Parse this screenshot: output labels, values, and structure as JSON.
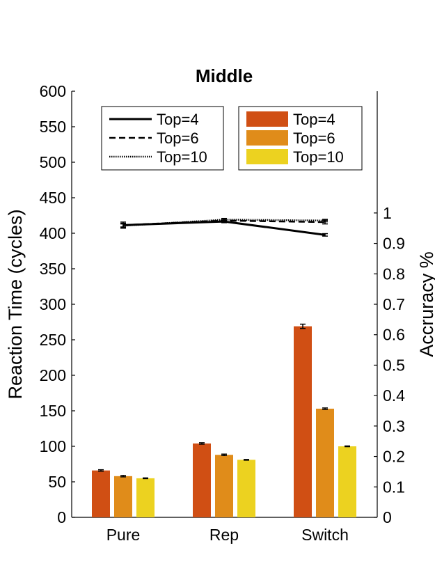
{
  "chart_data": {
    "type": "bar",
    "title": "Middle",
    "categories": [
      "Pure",
      "Rep",
      "Switch"
    ],
    "ylabel": "Reaction Time (cycles)",
    "ylim": [
      0,
      600
    ],
    "yticks": [
      "0",
      "50",
      "100",
      "150",
      "200",
      "250",
      "300",
      "350",
      "400",
      "450",
      "500",
      "550",
      "600"
    ],
    "y2label": "Accruracy %",
    "y2lim": [
      0,
      1.4
    ],
    "y2ticks": [
      "0",
      "0.1",
      "0.2",
      "0.3",
      "0.4",
      "0.5",
      "0.6",
      "0.7",
      "0.8",
      "0.9",
      "1"
    ],
    "bar_series": [
      {
        "name": "Top=4",
        "color": "#d04f14",
        "values": [
          66,
          104,
          269
        ],
        "errors": [
          1,
          1,
          3
        ]
      },
      {
        "name": "Top=6",
        "color": "#e08c1a",
        "values": [
          58,
          88,
          153
        ],
        "errors": [
          1,
          1,
          1
        ]
      },
      {
        "name": "Top=10",
        "color": "#ecd220",
        "values": [
          55,
          81,
          100
        ],
        "errors": [
          0.5,
          0.5,
          0.5
        ]
      }
    ],
    "line_series": [
      {
        "name": "Top=4",
        "style": "solid",
        "values": [
          0.96,
          0.972,
          0.928
        ],
        "errors": [
          0.01,
          0.004,
          0.004
        ]
      },
      {
        "name": "Top=6",
        "style": "dashed",
        "values": [
          0.96,
          0.975,
          0.97
        ],
        "errors": [
          0.006,
          0.005,
          0.006
        ]
      },
      {
        "name": "Top=10",
        "style": "dotted",
        "values": [
          0.958,
          0.978,
          0.975
        ],
        "errors": [
          0.006,
          0.004,
          0.004
        ]
      }
    ],
    "grid": false,
    "legends": [
      "top-left lines",
      "top-right bars"
    ]
  }
}
